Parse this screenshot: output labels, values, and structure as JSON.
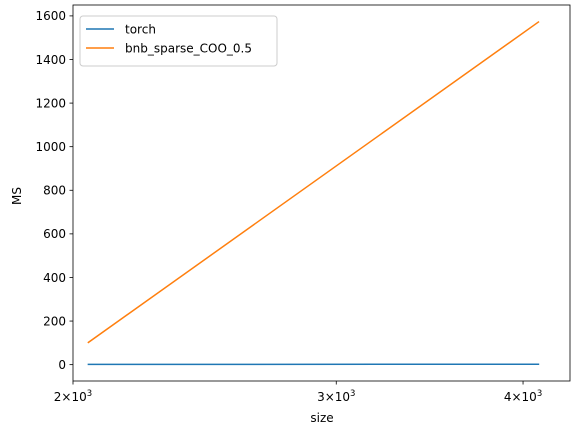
{
  "chart_data": {
    "type": "line",
    "xlabel": "size",
    "ylabel": "MS",
    "xscale": "log",
    "xlim": [
      2000,
      4300
    ],
    "ylim": [
      -75,
      1650
    ],
    "grid": false,
    "legend_position": "top-left",
    "x": [
      2048,
      4096
    ],
    "series": [
      {
        "name": "torch",
        "color": "#1f77b4",
        "values": [
          1,
          2
        ]
      },
      {
        "name": "bnb_sparse_COO_0.5",
        "color": "#ff7f0e",
        "values": [
          102,
          1572
        ]
      }
    ],
    "y_ticks": [
      0,
      200,
      400,
      600,
      800,
      1000,
      1200,
      1400,
      1600
    ],
    "x_ticks": [
      {
        "value": 2000,
        "base": "2×10",
        "exp": "3"
      },
      {
        "value": 3000,
        "base": "3×10",
        "exp": "3"
      },
      {
        "value": 4000,
        "base": "4×10",
        "exp": "3"
      }
    ]
  }
}
